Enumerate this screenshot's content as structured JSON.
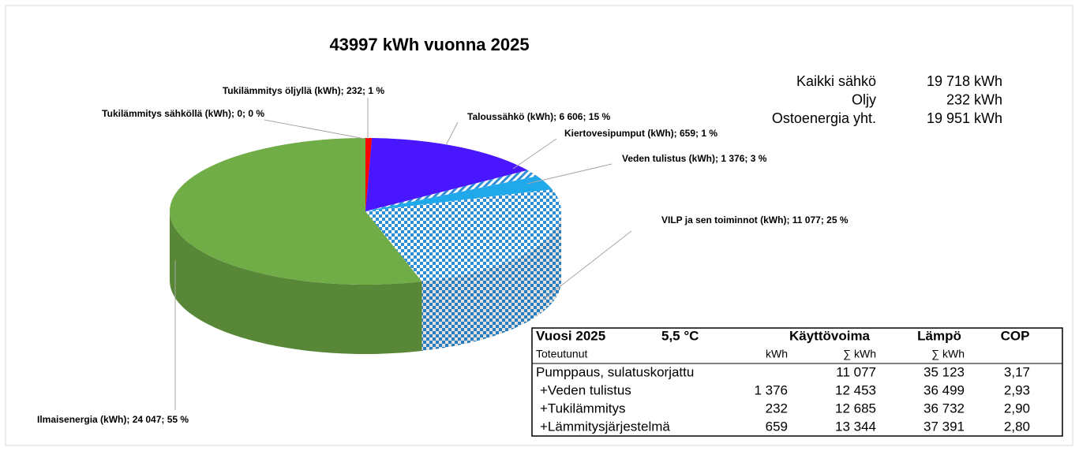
{
  "chart_data": {
    "type": "pie",
    "title": "43997  kWh vuonna 2025",
    "labels": [
      "Tukilämmitys sähköllä (kWh); 0; 0 %",
      "Tukilämmitys öljyllä (kWh); 232; 1 %",
      "Taloussähkö (kWh); 6 606; 15 %",
      "Kiertovesipumput (kWh); 659; 1 %",
      "Veden tulistus (kWh); 1 376; 3 %",
      "VILP ja sen toiminnot (kWh); 11 077; 25 %",
      "Ilmaisenergia (kWh); 24 047; 55 %"
    ],
    "values": [
      0,
      232,
      6606,
      659,
      1376,
      11077,
      24047
    ],
    "colors": [
      "#c00000",
      "#ff0000",
      "#4a16ff",
      "#2e8fd8",
      "#1fa9ea",
      "#2e8fd8",
      "#70ad47"
    ],
    "patterns": [
      null,
      null,
      null,
      "hatch",
      null,
      "checker",
      null
    ]
  },
  "summary": [
    [
      "Kaikki sähkö",
      "19 718 kWh"
    ],
    [
      "Oljy",
      "232 kWh"
    ],
    [
      "Ostoenergia yht.",
      "19 951 kWh"
    ]
  ],
  "table": {
    "header": [
      "Vuosi 2025",
      "5,5 °C",
      "Käyttövoima",
      "Lämpö",
      "COP"
    ],
    "subheader": [
      "Toteutunut",
      "kWh",
      "∑ kWh",
      "∑ kWh"
    ],
    "rows": [
      [
        "Pumppaus, sulatuskorjattu",
        null,
        "11 077",
        "35 123",
        "3,17"
      ],
      [
        "+Veden tulistus",
        "1 376",
        "12 453",
        "36 499",
        "2,93"
      ],
      [
        "+Tukilämmitys",
        "232",
        "12 685",
        "36 732",
        "2,90"
      ],
      [
        "+Lämmitysjärjestelmä",
        "659",
        "13 344",
        "37 391",
        "2,80"
      ]
    ]
  }
}
